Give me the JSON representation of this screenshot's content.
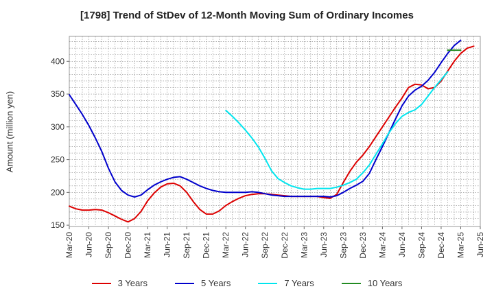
{
  "title": "[1798]  Trend of StDev of 12-Month Moving Sum of Ordinary Incomes",
  "chart_data": {
    "type": "line",
    "title": "[1798]  Trend of StDev of 12-Month Moving Sum of Ordinary Incomes",
    "xlabel": "",
    "ylabel": "Amount (million yen)",
    "ylim": [
      148,
      438
    ],
    "yticks": [
      150,
      200,
      250,
      300,
      350,
      400
    ],
    "x_ticks": [
      "Mar-20",
      "Jun-20",
      "Sep-20",
      "Dec-20",
      "Mar-21",
      "Jun-21",
      "Sep-21",
      "Dec-21",
      "Mar-22",
      "Jun-22",
      "Sep-22",
      "Dec-22",
      "Mar-23",
      "Jun-23",
      "Sep-23",
      "Dec-23",
      "Mar-24",
      "Jun-24",
      "Sep-24",
      "Dec-24",
      "Mar-25",
      "Jun-25"
    ],
    "x_start": "Mar-20",
    "x_end": "Jun-25",
    "grid": true,
    "legend_position": "bottom",
    "series": [
      {
        "name": "3 Years",
        "color": "#dd0000",
        "start": "Mar-20",
        "values": [
          179,
          175,
          173,
          173,
          174,
          173,
          169,
          164,
          159,
          155,
          160,
          171,
          187,
          199,
          208,
          213,
          214,
          210,
          200,
          186,
          174,
          167,
          167,
          172,
          180,
          186,
          191,
          195,
          197,
          198,
          198,
          197,
          196,
          195,
          194,
          194,
          194,
          194,
          194,
          192,
          191,
          197,
          215,
          232,
          246,
          257,
          270,
          285,
          300,
          315,
          330,
          344,
          360,
          365,
          364,
          358,
          360,
          370,
          385,
          400,
          412,
          420,
          423
        ]
      },
      {
        "name": "5 Years",
        "color": "#0000cc",
        "start": "Mar-20",
        "values": [
          349,
          334,
          319,
          302,
          283,
          262,
          237,
          216,
          203,
          196,
          193,
          196,
          204,
          211,
          216,
          220,
          223,
          224,
          220,
          215,
          210,
          206,
          203,
          201,
          200,
          200,
          200,
          200,
          201,
          200,
          198,
          196,
          195,
          194,
          194,
          194,
          194,
          194,
          194,
          194,
          193,
          195,
          200,
          206,
          211,
          217,
          229,
          250,
          270,
          291,
          312,
          332,
          347,
          356,
          362,
          371,
          383,
          398,
          412,
          424,
          432
        ]
      },
      {
        "name": "7 Years",
        "color": "#00e5ee",
        "start": "Mar-22",
        "values": [
          325,
          316,
          306,
          295,
          283,
          269,
          252,
          233,
          221,
          215,
          210,
          207,
          205,
          205,
          206,
          206,
          206,
          208,
          211,
          215,
          220,
          230,
          242,
          258,
          274,
          291,
          305,
          316,
          322,
          326,
          334,
          347,
          360,
          372,
          384
        ]
      },
      {
        "name": "10 Years",
        "color": "#228b22",
        "start": "Jan-25",
        "values": [
          417,
          417,
          417
        ]
      }
    ]
  }
}
